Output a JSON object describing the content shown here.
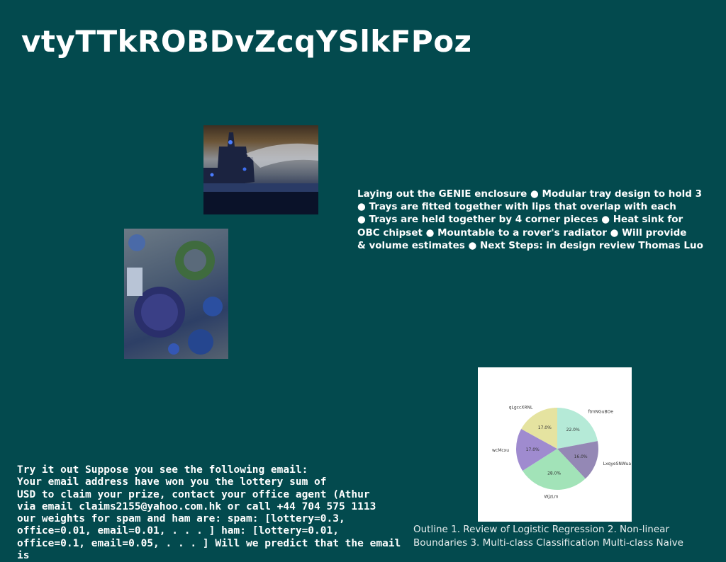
{
  "slide": {
    "title": "vtyTTkROBDvZcqYSlkFPoz",
    "bullets_text": "Laying out the GENIE enclosure ● Modular tray design to hold 3\n● Trays are fitted together with lips that overlap with each\n● Trays are held together by 4 corner pieces ● Heat sink for\nOBC chipset ● Mountable to a rover's radiator ● Will provide\n& volume estimates ● Next Steps: in design review Thomas Luo",
    "email_text": "Try it out Suppose you see the following email:\nYour email address have won you the lottery sum of\nUSD to claim your prize, contact your office agent (Athur\nvia email claims2155@yahoo.com.hk or call +44 704 575 1113\nour weights for spam and ham are: spam: [lottery=0.3,\noffice=0.01, email=0.01, . . . ] ham: [lottery=0.01,\noffice=0.1, email=0.05, . . . ] Will we predict that the email is",
    "outline_text": "Outline 1. Review of Logistic Regression 2. Non-linear\nBoundaries 3. Multi-class Classification Multi-class Naive"
  },
  "chart_data": {
    "type": "pie",
    "slices": [
      {
        "label": "ftmNGuBOe",
        "value": 22.0,
        "color": "#b5ead7"
      },
      {
        "label": "LxqyeSNWua",
        "value": 16.0,
        "color": "#9488b5"
      },
      {
        "label": "WjzLm",
        "value": 28.0,
        "color": "#a2e3b8"
      },
      {
        "label": "wcMcxu",
        "value": 17.0,
        "color": "#9f8bcf"
      },
      {
        "label": "qLgccXRNL",
        "value": 17.0,
        "color": "#e5e3a0"
      }
    ],
    "value_labels": [
      "22.0%",
      "16.0%",
      "28.0%",
      "17.0%",
      "17.0%"
    ]
  }
}
